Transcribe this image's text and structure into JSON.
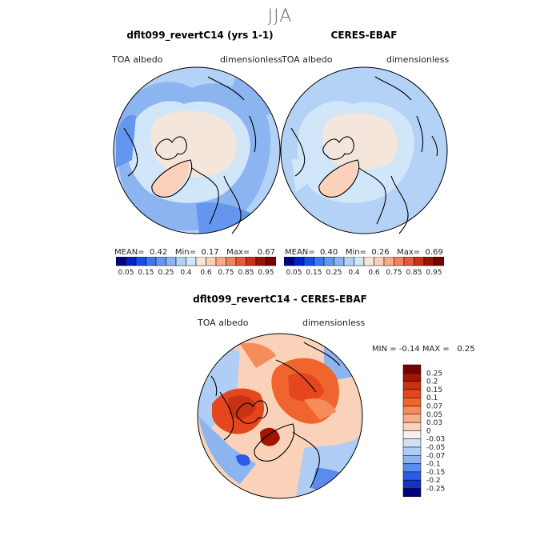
{
  "season_title": "JJA",
  "panels": [
    {
      "title": "dflt099_revertC14 (yrs 1-1)",
      "left_label": "TOA albedo",
      "right_label": "dimensionless",
      "stats": {
        "mean_label": "MEAN=",
        "mean": "0.42",
        "min_label": "Min=",
        "min": "0.17",
        "max_label": "Max=",
        "max": "0.67"
      }
    },
    {
      "title": "CERES-EBAF",
      "left_label": "TOA albedo",
      "right_label": "dimensionless",
      "stats": {
        "mean_label": "MEAN=",
        "mean": "0.40",
        "min_label": "Min=",
        "min": "0.26",
        "max_label": "Max=",
        "max": "0.69"
      }
    },
    {
      "title": "dflt099_revertC14 - CERES-EBAF",
      "left_label": "TOA albedo",
      "right_label": "dimensionless",
      "stats": {
        "min_label": "MIN =",
        "min": "-0.14",
        "max_label": "MAX =",
        "max": "0.25"
      }
    }
  ],
  "chart_data": [
    {
      "type": "heatmap",
      "title": "dflt099_revertC14 (yrs 1-1)",
      "projection": "north polar stereographic",
      "variable": "TOA albedo",
      "units": "dimensionless",
      "mean": 0.42,
      "min": 0.17,
      "max": 0.67,
      "colorbar_ticks": [
        "0.05",
        "0.15",
        "0.25",
        "0.4",
        "0.6",
        "0.75",
        "0.85",
        "0.95"
      ]
    },
    {
      "type": "heatmap",
      "title": "CERES-EBAF",
      "projection": "north polar stereographic",
      "variable": "TOA albedo",
      "units": "dimensionless",
      "mean": 0.4,
      "min": 0.26,
      "max": 0.69,
      "colorbar_ticks": [
        "0.05",
        "0.15",
        "0.25",
        "0.4",
        "0.6",
        "0.75",
        "0.85",
        "0.95"
      ]
    },
    {
      "type": "heatmap",
      "title": "dflt099_revertC14 - CERES-EBAF",
      "projection": "north polar stereographic",
      "variable": "TOA albedo",
      "units": "dimensionless",
      "min": -0.14,
      "max": 0.25,
      "colorbar_ticks": [
        "0.25",
        "0.2",
        "0.15",
        "0.1",
        "0.07",
        "0.05",
        "0.03",
        "0",
        "-0.03",
        "-0.05",
        "-0.07",
        "-0.1",
        "-0.15",
        "-0.2",
        "-0.25"
      ]
    }
  ],
  "colors": {
    "seq": [
      "#000080",
      "#0020c8",
      "#1450e6",
      "#3c78f0",
      "#6496f0",
      "#8cb4f0",
      "#b4d2f5",
      "#d2e6fa",
      "#f5e6dc",
      "#fad2bc",
      "#f5aa8c",
      "#f08264",
      "#e65a3c",
      "#c83219",
      "#961400",
      "#780000"
    ],
    "diff": [
      "#780000",
      "#a01400",
      "#c83214",
      "#e6461e",
      "#f0642d",
      "#f58c5a",
      "#f5af8c",
      "#fad2b9",
      "#f5f0eb",
      "#d2e1f5",
      "#afcdf5",
      "#8cb4f0",
      "#5a8cf0",
      "#2d5ae6",
      "#1432c8",
      "#000080"
    ]
  }
}
